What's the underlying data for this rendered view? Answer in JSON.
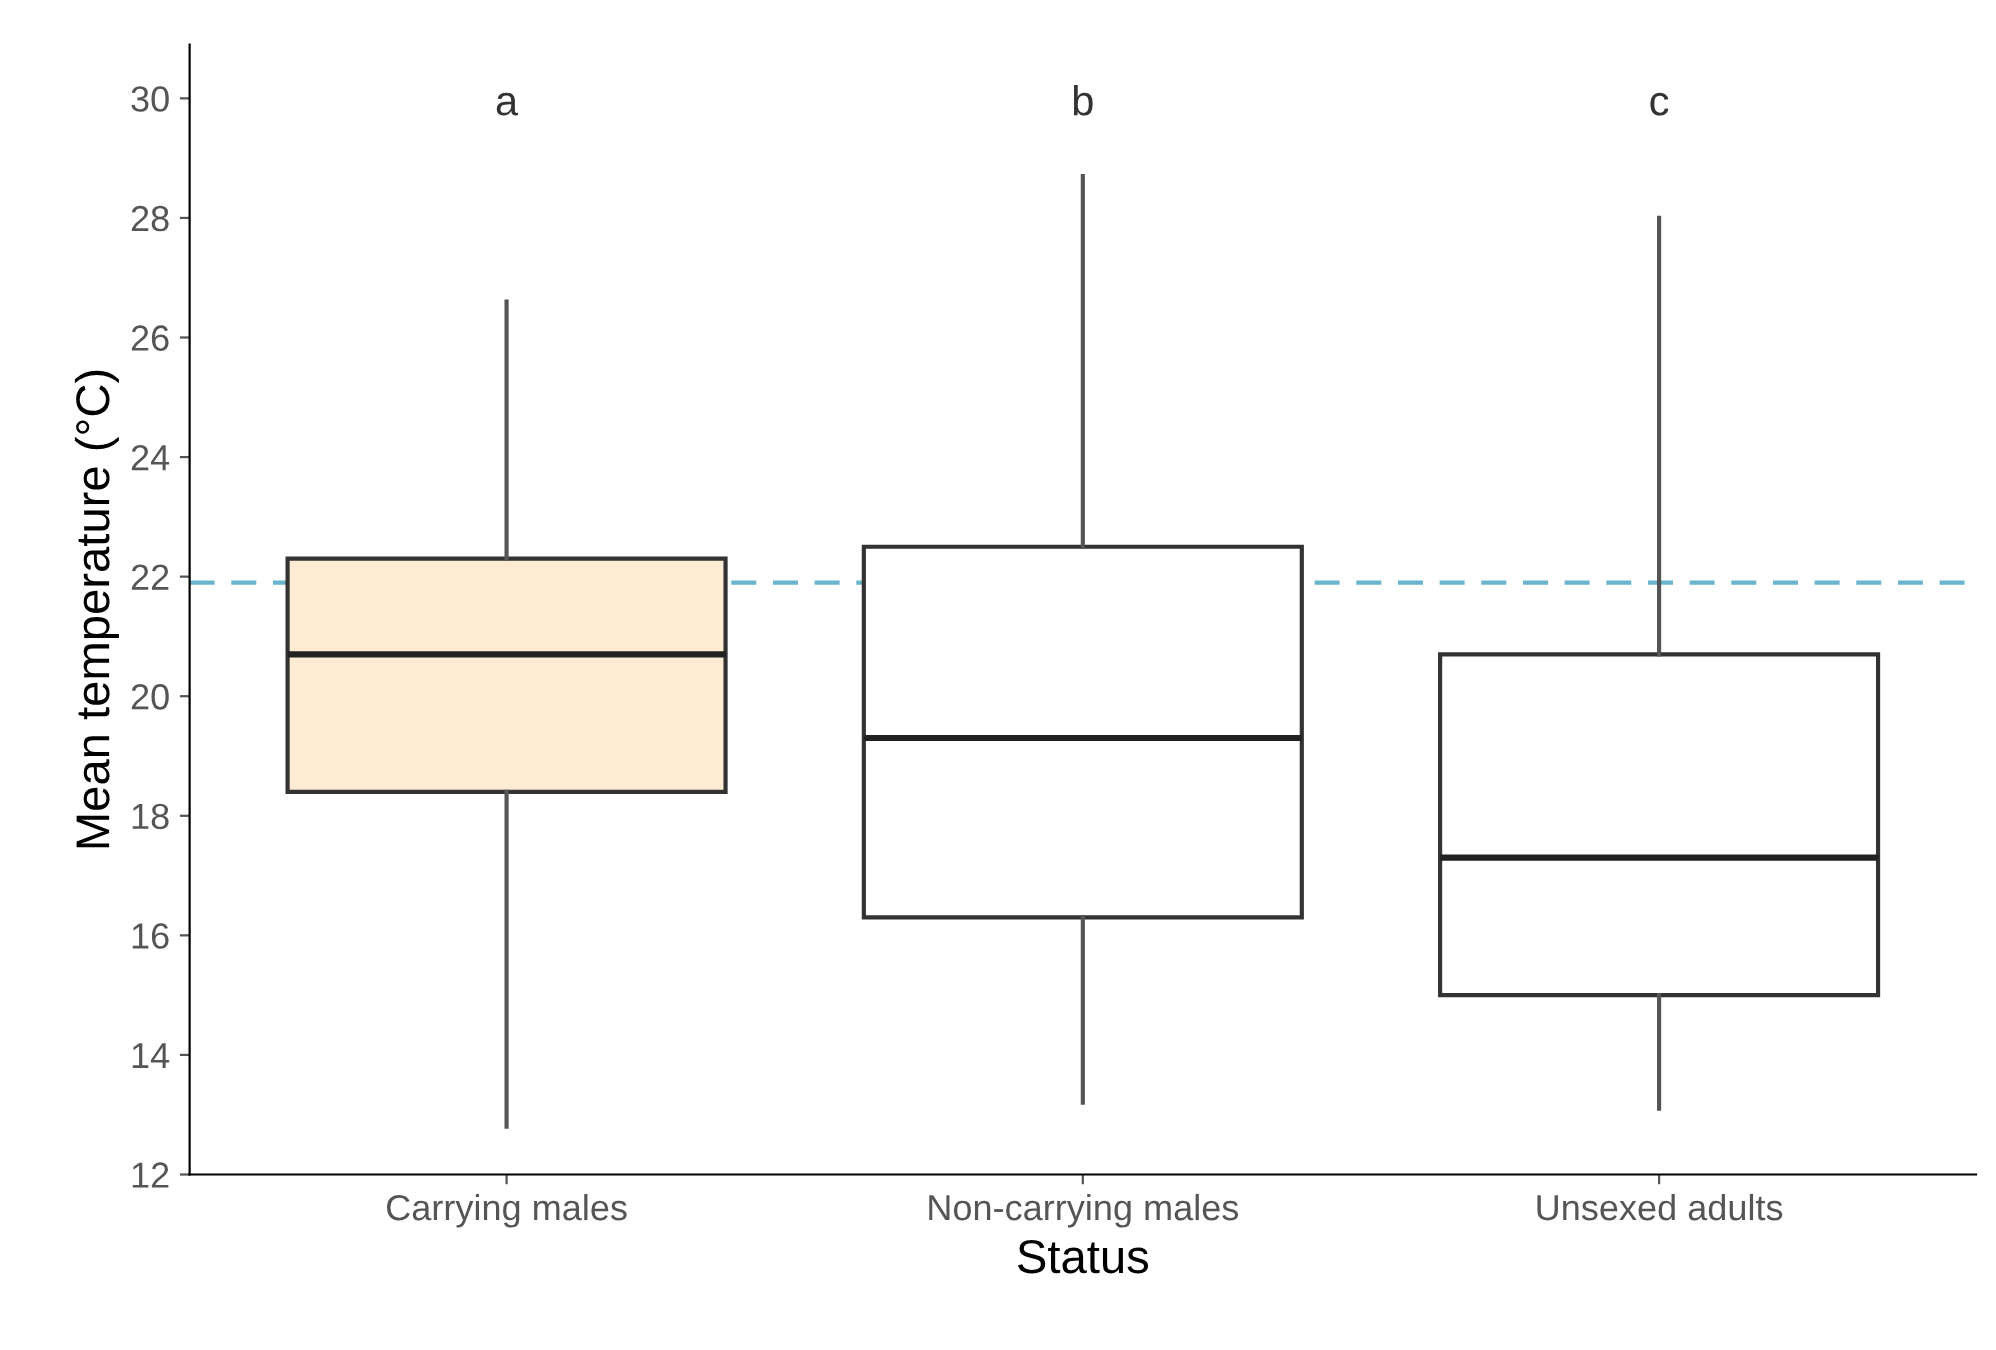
{
  "chart_data": {
    "type": "box",
    "xlabel": "Status",
    "ylabel": "Mean temperature (°C)",
    "categories": [
      "Carrying males",
      "Non-carrying males",
      "Unsexed adults"
    ],
    "colors": [
      "#fdebd3",
      "#ffffff",
      "#ffffff"
    ],
    "boxes": [
      {
        "low": 12.8,
        "q1": 18.4,
        "median": 20.7,
        "q3": 22.3,
        "high": 26.6
      },
      {
        "low": 13.2,
        "q1": 16.3,
        "median": 19.3,
        "q3": 22.5,
        "high": 28.7
      },
      {
        "low": 13.1,
        "q1": 15.0,
        "median": 17.3,
        "q3": 20.7,
        "high": 28.0
      }
    ],
    "ylim": [
      12,
      30.9
    ],
    "yticks": [
      12,
      14,
      16,
      18,
      20,
      22,
      24,
      26,
      28,
      30
    ],
    "grid": false,
    "legend": false,
    "ref_lines": [
      {
        "axis": "y",
        "value": 21.9,
        "color": "#6ab4cf",
        "line_style": "dashed"
      }
    ],
    "annotations": [
      "a",
      "b",
      "c"
    ]
  }
}
